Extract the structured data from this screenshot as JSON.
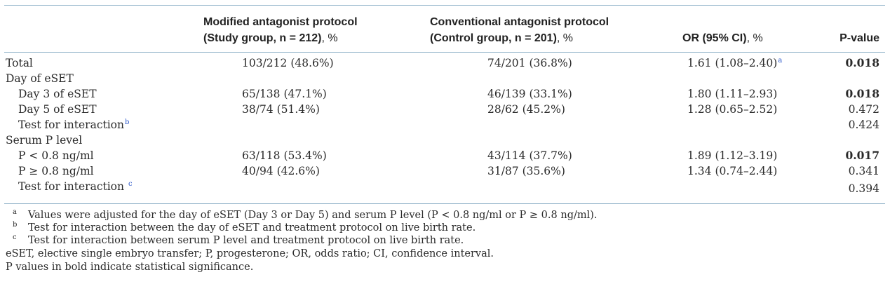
{
  "header": {
    "study_line1": "Modified antagonist protocol",
    "study_line2_bold": "(Study group, n = 212)",
    "study_line2_unit": ", %",
    "control_line1": "Conventional antagonist protocol",
    "control_line2_bold": "(Control group, n = 201)",
    "control_line2_unit": ", %",
    "or_bold": "OR (95% CI)",
    "or_unit": ", %",
    "pvalue": "P-value"
  },
  "rows": [
    {
      "label": "Total",
      "study": "103/212 (48.6%)",
      "control": "74/201 (36.8%)",
      "or": "1.61 (1.08–2.40)",
      "or_ref": "a",
      "p": "0.018",
      "p_bold": true
    },
    {
      "label": "Day of eSET"
    },
    {
      "label": "Day 3 of eSET",
      "study": "65/138 (47.1%)",
      "control": "46/139 (33.1%)",
      "or": "1.80 (1.11–2.93)",
      "p": "0.018",
      "p_bold": true
    },
    {
      "label": "Day 5 of eSET",
      "study": "38/74 (51.4%)",
      "control": "28/62 (45.2%)",
      "or": "1.28 (0.65–2.52)",
      "p": "0.472"
    },
    {
      "label": "Test for interaction",
      "label_ref": "b",
      "p": "0.424"
    },
    {
      "label": "Serum P level"
    },
    {
      "label": "P < 0.8 ng/ml",
      "study": "63/118 (53.4%)",
      "control": "43/114 (37.7%)",
      "or": "1.89 (1.12–3.19)",
      "p": "0.017",
      "p_bold": true
    },
    {
      "label": "P ≥ 0.8 ng/ml",
      "study": "40/94 (42.6%)",
      "control": "31/87 (35.6%)",
      "or": "1.34 (0.74–2.44)",
      "p": "0.341"
    },
    {
      "label": "Test for interaction",
      "label_ref": "c",
      "p": "0.394"
    }
  ],
  "footnotes": [
    {
      "mark": "a",
      "text": "Values were adjusted for the day of eSET (Day 3 or Day 5) and serum P level (P < 0.8 ng/ml or P ≥ 0.8 ng/ml)."
    },
    {
      "mark": "b",
      "text": "Test for interaction between the day of eSET and treatment protocol on live birth rate."
    },
    {
      "mark": "c",
      "text": "Test for interaction between serum P level and treatment protocol on live birth rate."
    },
    {
      "mark": "",
      "text": "eSET, elective single embryo transfer; P, progesterone; OR, odds ratio; CI, confidence interval."
    },
    {
      "mark": "",
      "text": "P values in bold indicate statistical significance."
    }
  ],
  "colors": {
    "rule": "#8fb1c8",
    "reference": "#2b57c9"
  }
}
